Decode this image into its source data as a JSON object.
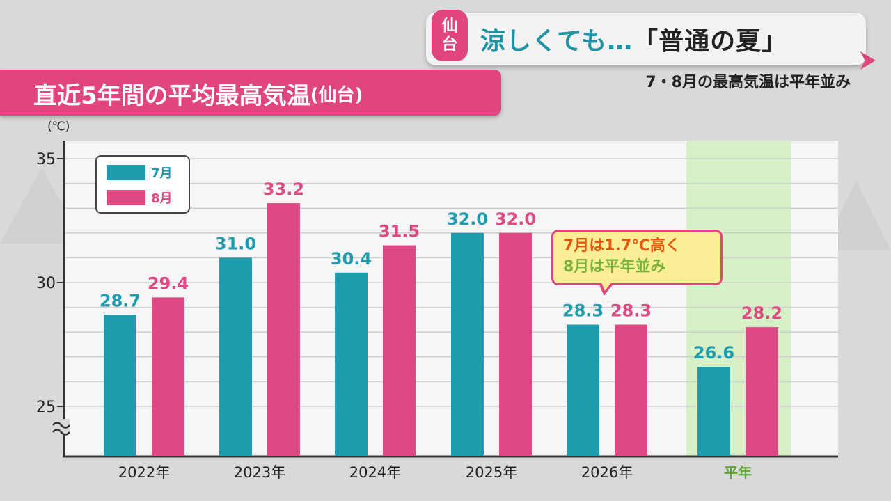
{
  "header": {
    "city_badge": [
      "仙",
      "台"
    ],
    "headline_main": "涼しくても…",
    "headline_quote": "「普通の夏」",
    "subheadline": "7・8月の最高気温は平年並み"
  },
  "chart_title": {
    "main": "直近5年間の平均最高気温",
    "paren": "(仙台)"
  },
  "colors": {
    "july": "#1e9cad",
    "august": "#dd4983",
    "average_band": "#d6f0c8",
    "average_label": "#5aaa2e",
    "accent_pink": "#e0457f",
    "callout_fill": "#fbee96"
  },
  "callout": {
    "line1": "7月は1.7℃高く",
    "line2": "8月は平年並み"
  },
  "chart_data": {
    "type": "bar",
    "unit_label": "(℃)",
    "categories": [
      "2022年",
      "2023年",
      "2024年",
      "2025年",
      "2026年",
      "平年"
    ],
    "series": [
      {
        "name": "7月",
        "values": [
          28.7,
          31.0,
          30.4,
          32.0,
          28.3,
          26.6
        ],
        "labels": [
          "28.7",
          "31.0",
          "30.4",
          "32.0",
          "28.3",
          "26.6"
        ]
      },
      {
        "name": "8月",
        "values": [
          29.4,
          33.2,
          31.5,
          32.0,
          28.3,
          28.2
        ],
        "labels": [
          "29.4",
          "33.2",
          "31.5",
          "32.0",
          "28.3",
          "28.2"
        ]
      }
    ],
    "ylim": [
      23,
      35.5
    ],
    "yticks": [
      25,
      30,
      35
    ],
    "axis_break": true,
    "grid": true,
    "highlighted_category": "平年",
    "legend_position": "top-left"
  }
}
